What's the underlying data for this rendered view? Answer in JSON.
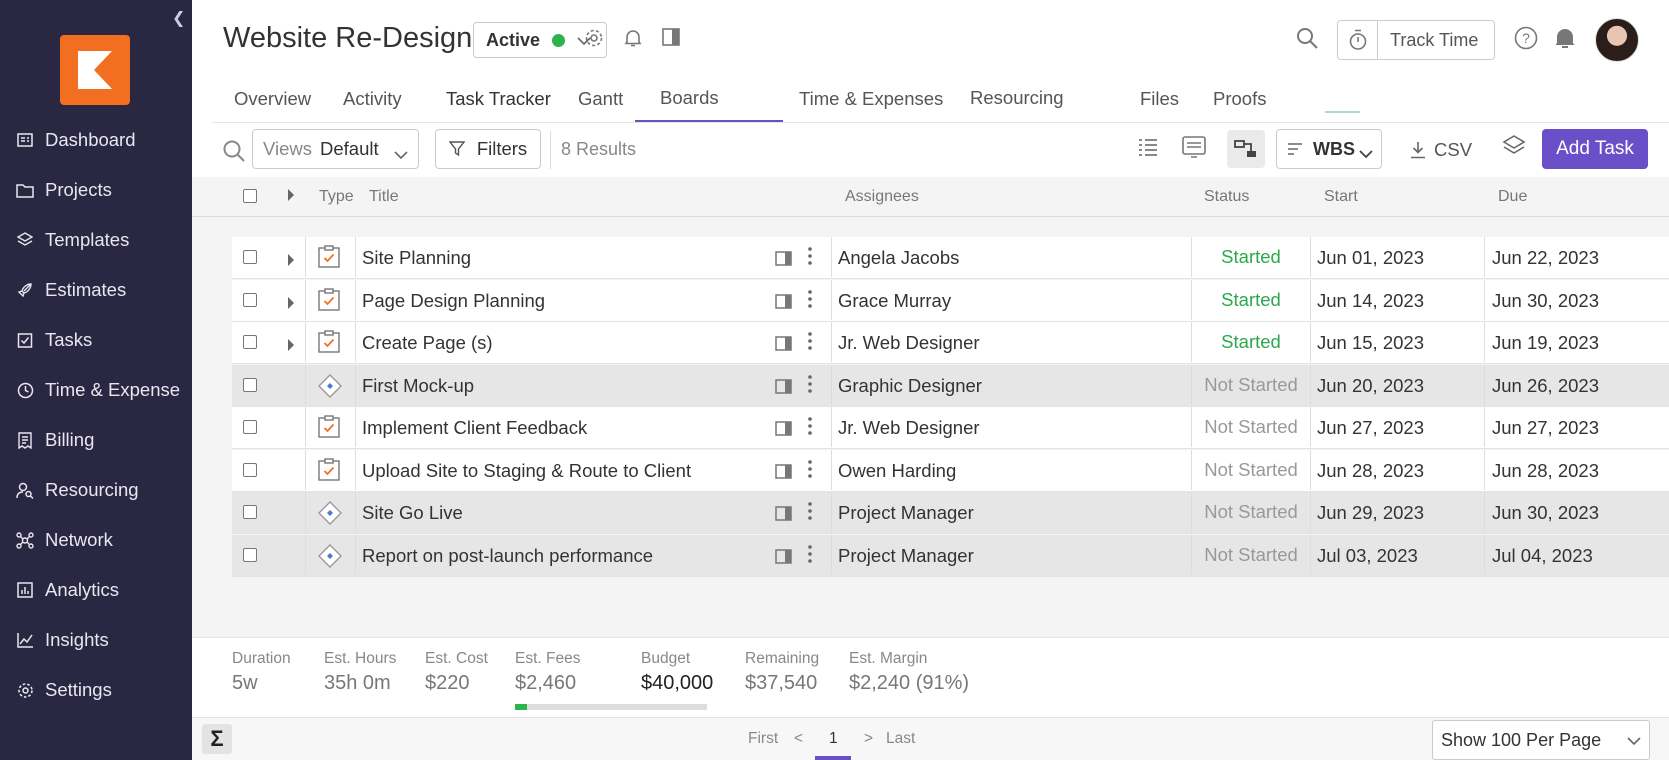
{
  "sidebar": {
    "items": [
      {
        "label": "Dashboard",
        "icon": "dashboard-icon"
      },
      {
        "label": "Projects",
        "icon": "folder-icon"
      },
      {
        "label": "Templates",
        "icon": "layers-icon"
      },
      {
        "label": "Estimates",
        "icon": "rocket-icon"
      },
      {
        "label": "Tasks",
        "icon": "task-check-icon"
      },
      {
        "label": "Time & Expense",
        "icon": "clock-icon"
      },
      {
        "label": "Billing",
        "icon": "receipt-icon"
      },
      {
        "label": "Resourcing",
        "icon": "person-search-icon"
      },
      {
        "label": "Network",
        "icon": "network-icon"
      },
      {
        "label": "Analytics",
        "icon": "bar-chart-icon"
      },
      {
        "label": "Insights",
        "icon": "line-chart-icon"
      },
      {
        "label": "Settings",
        "icon": "gear-icon"
      }
    ]
  },
  "header": {
    "title": "Website Re-Design",
    "status": "Active",
    "track_time": "Track Time"
  },
  "tabs": [
    "Overview",
    "Activity",
    "Task Tracker",
    "Gantt",
    "Boards",
    "Time & Expenses",
    "Resourcing",
    "Files",
    "Proofs"
  ],
  "toolbar": {
    "views_label": "Views",
    "views_value": "Default",
    "filters": "Filters",
    "results": "8 Results",
    "sort": "WBS",
    "csv": "CSV",
    "add_task": "Add Task"
  },
  "columns": {
    "type": "Type",
    "title": "Title",
    "assignees": "Assignees",
    "status": "Status",
    "start": "Start",
    "due": "Due"
  },
  "rows": [
    {
      "type": "task",
      "expandable": true,
      "title": "Site Planning",
      "assignee": "Angela Jacobs",
      "status": "Started",
      "start": "Jun 01, 2023",
      "due": "Jun 22, 2023",
      "shaded": false
    },
    {
      "type": "task",
      "expandable": true,
      "title": "Page Design Planning",
      "assignee": "Grace Murray",
      "status": "Started",
      "start": "Jun 14, 2023",
      "due": "Jun 30, 2023",
      "shaded": false
    },
    {
      "type": "task",
      "expandable": true,
      "title": "Create Page (s)",
      "assignee": "Jr. Web Designer",
      "status": "Started",
      "start": "Jun 15, 2023",
      "due": "Jun 19, 2023",
      "shaded": false
    },
    {
      "type": "milestone",
      "expandable": false,
      "title": "First Mock-up",
      "assignee": "Graphic Designer",
      "status": "Not Started",
      "start": "Jun 20, 2023",
      "due": "Jun 26, 2023",
      "shaded": true
    },
    {
      "type": "task",
      "expandable": false,
      "title": "Implement Client Feedback",
      "assignee": "Jr. Web Designer",
      "status": "Not Started",
      "start": "Jun 27, 2023",
      "due": "Jun 27, 2023",
      "shaded": false
    },
    {
      "type": "task",
      "expandable": false,
      "title": "Upload Site to Staging & Route to Client",
      "assignee": "Owen Harding",
      "status": "Not Started",
      "start": "Jun 28, 2023",
      "due": "Jun 28, 2023",
      "shaded": false
    },
    {
      "type": "milestone",
      "expandable": false,
      "title": "Site Go Live",
      "assignee": "Project Manager",
      "status": "Not Started",
      "start": "Jun 29, 2023",
      "due": "Jun 30, 2023",
      "shaded": true
    },
    {
      "type": "milestone",
      "expandable": false,
      "title": "Report on post-launch performance",
      "assignee": "Project Manager",
      "status": "Not Started",
      "start": "Jul 03, 2023",
      "due": "Jul 04, 2023",
      "shaded": true
    }
  ],
  "summary": {
    "duration": {
      "label": "Duration",
      "value": "5w"
    },
    "est_hours": {
      "label": "Est. Hours",
      "value": "35h 0m"
    },
    "est_cost": {
      "label": "Est. Cost",
      "value": "$220"
    },
    "est_fees": {
      "label": "Est. Fees",
      "value": "$2,460"
    },
    "budget": {
      "label": "Budget",
      "value": "$40,000"
    },
    "remaining": {
      "label": "Remaining",
      "value": "$37,540"
    },
    "est_margin": {
      "label": "Est. Margin",
      "value": "$2,240 (91%)"
    },
    "budget_used_fraction": 0.06
  },
  "pager": {
    "first": "First",
    "prev": "<",
    "current": "1",
    "next": ">",
    "last": "Last",
    "per_page": "Show 100 Per Page"
  },
  "colors": {
    "sidebar": "#2a2743",
    "brand": "#f26f21",
    "accent": "#6a4fc9",
    "started": "#2ba84a",
    "not_started": "#999999"
  }
}
